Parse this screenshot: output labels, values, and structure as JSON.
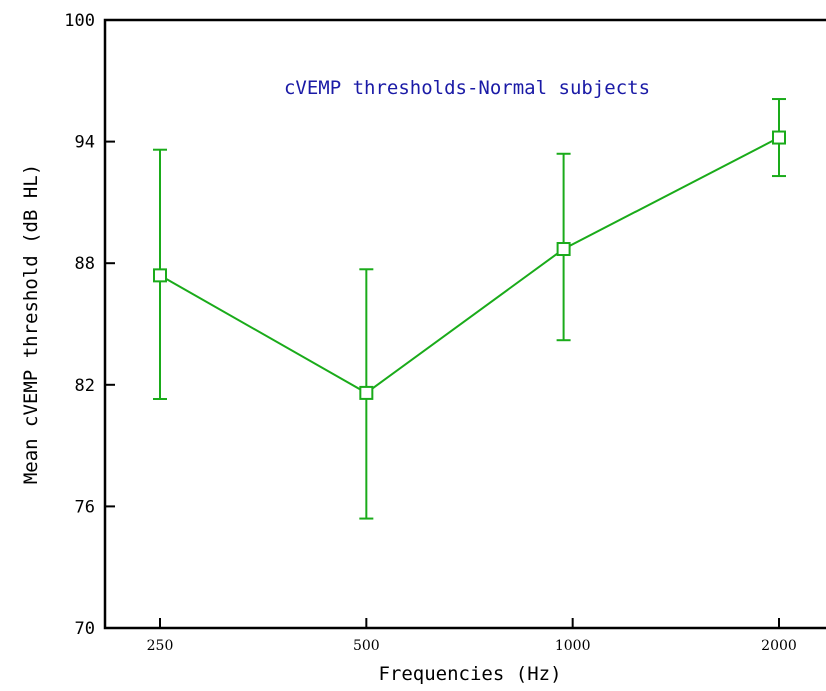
{
  "chart_data": {
    "type": "line",
    "title": "cVEMP thresholds-Normal subjects",
    "xlabel": "Frequencies (Hz)",
    "ylabel": "Mean cVEMP threshold (dB HL)",
    "x_scale": "log",
    "x_ticks": [
      250,
      500,
      1000,
      2000
    ],
    "x_tick_labels": [
      "250",
      "500",
      "1000",
      "2000"
    ],
    "ylim": [
      70,
      100
    ],
    "y_ticks": [
      70,
      76,
      82,
      88,
      94,
      100
    ],
    "y_tick_labels": [
      "70",
      "76",
      "82",
      "88",
      "94",
      "100"
    ],
    "grid": false,
    "colors": {
      "series": "#1aab1a",
      "title": "#1a1aa6",
      "axis": "#000000"
    },
    "series": [
      {
        "x": [
          250,
          500,
          970,
          2000
        ],
        "y": [
          87.4,
          81.6,
          88.7,
          94.2
        ],
        "err_low": [
          81.3,
          75.4,
          84.2,
          92.3
        ],
        "err_high": [
          93.6,
          87.7,
          93.4,
          96.1
        ],
        "marker": "open-square"
      }
    ]
  }
}
